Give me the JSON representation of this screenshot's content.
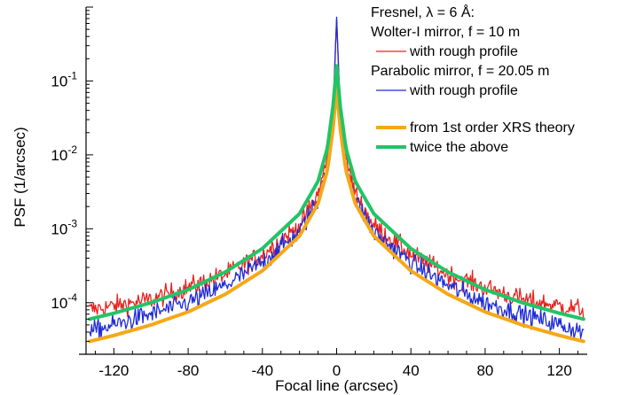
{
  "chart_data": {
    "type": "line",
    "title": "",
    "xlabel": "Focal line (arcsec)",
    "ylabel": "PSF (1/arcsec)",
    "x_scale": "linear",
    "y_scale": "log",
    "xlim": [
      -135,
      135
    ],
    "ylim": [
      2.5e-05,
      1.0
    ],
    "x_ticks": [
      -120,
      -80,
      -40,
      0,
      40,
      80,
      120
    ],
    "x_tick_labels": [
      "-120",
      "-80",
      "-40",
      "0",
      "40",
      "80",
      "120"
    ],
    "y_ticks": [
      0.0001,
      0.001,
      0.01,
      0.1
    ],
    "y_tick_labels": [
      {
        "base": "10",
        "exp": "-4"
      },
      {
        "base": "10",
        "exp": "-3"
      },
      {
        "base": "10",
        "exp": "-2"
      },
      {
        "base": "10",
        "exp": "-1"
      }
    ],
    "grid": false,
    "legend_position": "top-right",
    "legend": {
      "header_lines": [
        "Fresnel, λ = 6 Å:",
        "Wolter-I mirror, f = 10 m"
      ],
      "entries": [
        {
          "label": "with rough profile",
          "color": "#e8231f",
          "series": 0
        },
        {
          "heading": "Parabolic mirror, f = 20.05 m",
          "label": "with rough profile",
          "color": "#1f2bd6",
          "series": 1
        },
        {
          "label": "from 1st order XRS theory",
          "color": "#f5a818",
          "series": 2
        },
        {
          "label": "twice the above",
          "color": "#22c466",
          "series": 3
        }
      ]
    },
    "series": [
      {
        "color": "#e8231f",
        "style": "noisy",
        "x": [
          -133,
          -120,
          -100,
          -80,
          -60,
          -40,
          -20,
          -10,
          -5,
          -2,
          0,
          2,
          5,
          10,
          20,
          40,
          60,
          80,
          100,
          120,
          133
        ],
        "y": [
          8e-05,
          9e-05,
          0.00011,
          0.00016,
          0.00024,
          0.00045,
          0.0011,
          0.003,
          0.009,
          0.04,
          0.7,
          0.04,
          0.009,
          0.003,
          0.0011,
          0.00045,
          0.00024,
          0.00016,
          0.00011,
          9e-05,
          8e-05
        ]
      },
      {
        "color": "#1f2bd6",
        "style": "noisy",
        "x": [
          -133,
          -120,
          -100,
          -80,
          -60,
          -40,
          -20,
          -10,
          -5,
          -2,
          0,
          2,
          5,
          10,
          20,
          40,
          60,
          80,
          100,
          120,
          133
        ],
        "y": [
          4e-05,
          5e-05,
          7e-05,
          0.0001,
          0.00017,
          0.00035,
          0.0009,
          0.0025,
          0.008,
          0.035,
          0.7,
          0.035,
          0.008,
          0.0025,
          0.0009,
          0.00035,
          0.00017,
          0.0001,
          7e-05,
          5e-05,
          4e-05
        ]
      },
      {
        "color": "#f5a818",
        "style": "smooth",
        "x": [
          -133,
          -120,
          -100,
          -80,
          -60,
          -40,
          -20,
          -10,
          -5,
          -2,
          0,
          2,
          5,
          10,
          20,
          40,
          60,
          80,
          100,
          120,
          133
        ],
        "y": [
          3e-05,
          3.6e-05,
          5e-05,
          7.5e-05,
          0.00013,
          0.00027,
          0.0008,
          0.0022,
          0.0062,
          0.022,
          0.08,
          0.022,
          0.0062,
          0.0022,
          0.0008,
          0.00027,
          0.00013,
          7.5e-05,
          5e-05,
          3.6e-05,
          3e-05
        ]
      },
      {
        "color": "#22c466",
        "style": "smooth",
        "x": [
          -133,
          -120,
          -100,
          -80,
          -60,
          -40,
          -20,
          -10,
          -5,
          -2,
          0,
          2,
          5,
          10,
          20,
          40,
          60,
          80,
          100,
          120,
          133
        ],
        "y": [
          6e-05,
          7.2e-05,
          0.0001,
          0.00015,
          0.00026,
          0.00054,
          0.0016,
          0.0044,
          0.0124,
          0.044,
          0.16,
          0.044,
          0.0124,
          0.0044,
          0.0016,
          0.00054,
          0.00026,
          0.00015,
          0.0001,
          7.2e-05,
          6e-05
        ]
      }
    ]
  }
}
